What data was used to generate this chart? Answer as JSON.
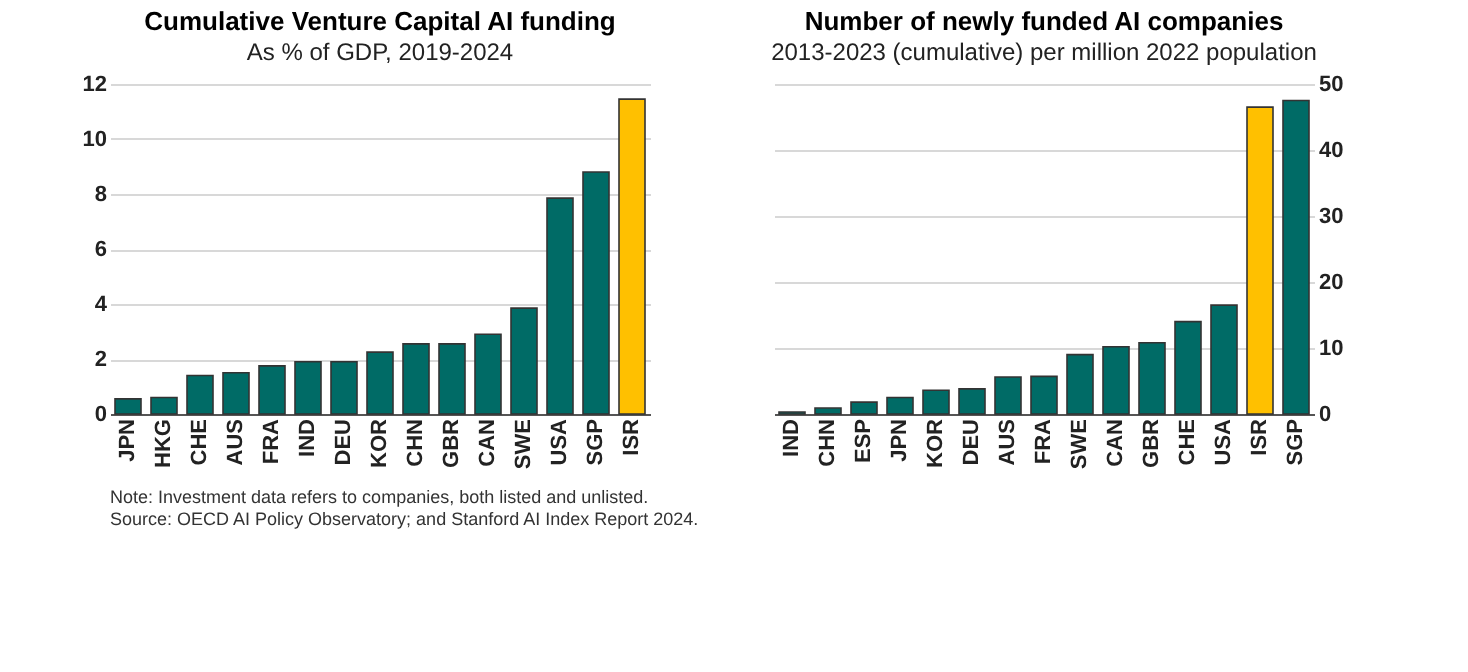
{
  "chart_data": [
    {
      "type": "bar",
      "title": "Cumulative Venture Capital AI funding",
      "subtitle": "As % of GDP, 2019-2024",
      "categories": [
        "JPN",
        "HKG",
        "CHE",
        "AUS",
        "FRA",
        "IND",
        "DEU",
        "KOR",
        "CHN",
        "GBR",
        "CAN",
        "SWE",
        "USA",
        "SGP",
        "ISR"
      ],
      "values": [
        0.55,
        0.6,
        1.4,
        1.5,
        1.75,
        1.9,
        1.9,
        2.25,
        2.55,
        2.55,
        2.9,
        3.85,
        7.85,
        8.8,
        11.45
      ],
      "colors": [
        "#006b66",
        "#006b66",
        "#006b66",
        "#006b66",
        "#006b66",
        "#006b66",
        "#006b66",
        "#006b66",
        "#006b66",
        "#006b66",
        "#006b66",
        "#006b66",
        "#006b66",
        "#006b66",
        "#ffc000"
      ],
      "ylim": [
        0,
        12
      ],
      "yticks": [
        0,
        2,
        4,
        6,
        8,
        10,
        12
      ],
      "grid": "y",
      "annotations": [
        "Note: Investment data refers to companies, both listed and unlisted.",
        "Source: OECD AI Policy Observatory; and Stanford AI Index Report 2024."
      ]
    },
    {
      "type": "bar",
      "title": "Number of newly funded AI companies",
      "subtitle": "2013-2023 (cumulative) per million 2022 population",
      "categories": [
        "IND",
        "CHN",
        "ESP",
        "JPN",
        "KOR",
        "DEU",
        "AUS",
        "FRA",
        "SWE",
        "CAN",
        "GBR",
        "CHE",
        "USA",
        "ISR",
        "SGP"
      ],
      "values": [
        0.3,
        0.9,
        1.8,
        2.5,
        3.6,
        3.8,
        5.6,
        5.7,
        9.0,
        10.2,
        10.8,
        14.0,
        16.5,
        46.5,
        47.5
      ],
      "colors": [
        "#006b66",
        "#006b66",
        "#006b66",
        "#006b66",
        "#006b66",
        "#006b66",
        "#006b66",
        "#006b66",
        "#006b66",
        "#006b66",
        "#006b66",
        "#006b66",
        "#006b66",
        "#ffc000",
        "#006b66"
      ],
      "ylim": [
        0,
        50
      ],
      "yticks": [
        0,
        10,
        20,
        30,
        40,
        50
      ],
      "grid": "y"
    }
  ]
}
